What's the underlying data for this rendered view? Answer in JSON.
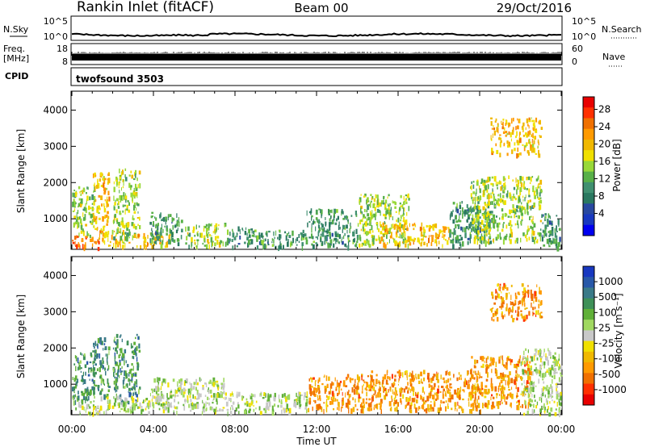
{
  "header": {
    "station": "Rankin Inlet (fitACF)",
    "beam": "Beam 00",
    "date": "29/Oct/2016"
  },
  "strips": {
    "nsky_label": "N.Sky",
    "nsky_ticks": [
      "10^5",
      "10^0"
    ],
    "nsearch_label": "N.Search",
    "nsearch_ticks": [
      "10^5",
      "10^0"
    ],
    "freq_label_1": "Freq.",
    "freq_label_2": "[MHz]",
    "freq_ticks": [
      "18",
      "8"
    ],
    "nave_label": "Nave",
    "nave_ticks": [
      "60",
      "0"
    ],
    "cpid_label": "CPID",
    "cpid_value": "twofsound 3503"
  },
  "xaxis": {
    "label": "Time UT",
    "ticks": [
      "00:00",
      "04:00",
      "08:00",
      "12:00",
      "16:00",
      "20:00",
      "00:00"
    ]
  },
  "panels": [
    {
      "ylabel": "Slant Range [km]",
      "yticks": [
        "4000",
        "3000",
        "2000",
        "1000"
      ],
      "cbar_label": "Power [dB]",
      "cbar_ticks": [
        "28",
        "24",
        "20",
        "16",
        "12",
        "8",
        "4"
      ],
      "cbar_colors": [
        "#e80000",
        "#ff3000",
        "#f07000",
        "#ff9a00",
        "#f0b800",
        "#f0e000",
        "#98d838",
        "#58b048",
        "#409070",
        "#2a7860",
        "#2848a0",
        "#1838c0",
        "#0000f0"
      ]
    },
    {
      "ylabel": "Slant Range [km]",
      "yticks": [
        "4000",
        "3000",
        "2000",
        "1000"
      ],
      "cbar_label": "Velocity [m s⁻¹]",
      "cbar_ticks": [
        "1000",
        "500",
        "100",
        "25",
        "-25",
        "-100",
        "-500",
        "-1000"
      ],
      "cbar_colors": [
        "#1838c0",
        "#2858a8",
        "#3a7a88",
        "#3e9058",
        "#60b038",
        "#a0d860",
        "#c8c8c8",
        "#f0e000",
        "#f0b800",
        "#ff9a00",
        "#f07000",
        "#ff3000",
        "#e80000"
      ]
    }
  ],
  "chart_data": [
    {
      "type": "heatmap",
      "title": "Rankin Inlet (fitACF)",
      "subtitle": "Beam 00",
      "xlabel": "Time UT",
      "ylabel": "Slant Range [km]",
      "x_ticks": [
        "00:00",
        "04:00",
        "08:00",
        "12:00",
        "16:00",
        "20:00",
        "00:00"
      ],
      "xlim_hours": [
        0,
        24
      ],
      "ylim": [
        180,
        4500
      ],
      "colorbar": {
        "label": "Power [dB]",
        "ticks": [
          4,
          8,
          12,
          16,
          20,
          24,
          28
        ]
      },
      "echo_regions": [
        {
          "t0": 0.0,
          "t1": 1.3,
          "r0": 200,
          "r1": 550,
          "value": 24
        },
        {
          "t0": 0.0,
          "t1": 1.1,
          "r0": 550,
          "r1": 1900,
          "value": 16
        },
        {
          "t0": 1.0,
          "t1": 1.8,
          "r0": 700,
          "r1": 2300,
          "value": 20
        },
        {
          "t0": 1.3,
          "t1": 2.8,
          "r0": 250,
          "r1": 700,
          "value": 20
        },
        {
          "t0": 2.0,
          "t1": 3.3,
          "r0": 500,
          "r1": 2400,
          "value": 16
        },
        {
          "t0": 3.0,
          "t1": 4.8,
          "r0": 250,
          "r1": 650,
          "value": 20
        },
        {
          "t0": 3.8,
          "t1": 5.4,
          "r0": 300,
          "r1": 1200,
          "value": 12
        },
        {
          "t0": 5.5,
          "t1": 7.5,
          "r0": 250,
          "r1": 900,
          "value": 16
        },
        {
          "t0": 7.5,
          "t1": 9.5,
          "r0": 250,
          "r1": 800,
          "value": 12
        },
        {
          "t0": 9.5,
          "t1": 11.5,
          "r0": 250,
          "r1": 700,
          "value": 12
        },
        {
          "t0": 11.5,
          "t1": 14.0,
          "r0": 250,
          "r1": 1300,
          "value": 12
        },
        {
          "t0": 14.0,
          "t1": 16.5,
          "r0": 300,
          "r1": 1700,
          "value": 16
        },
        {
          "t0": 15.0,
          "t1": 18.5,
          "r0": 300,
          "r1": 900,
          "value": 20
        },
        {
          "t0": 18.5,
          "t1": 20.5,
          "r0": 300,
          "r1": 1500,
          "value": 12
        },
        {
          "t0": 19.5,
          "t1": 23.0,
          "r0": 400,
          "r1": 2200,
          "value": 16
        },
        {
          "t0": 20.5,
          "t1": 23.0,
          "r0": 2800,
          "r1": 3800,
          "value": 20
        },
        {
          "t0": 23.0,
          "t1": 24.0,
          "r0": 200,
          "r1": 1200,
          "value": 12
        }
      ]
    },
    {
      "type": "heatmap",
      "title": "Rankin Inlet (fitACF)",
      "xlabel": "Time UT",
      "ylabel": "Slant Range [km]",
      "x_ticks": [
        "00:00",
        "04:00",
        "08:00",
        "12:00",
        "16:00",
        "20:00",
        "00:00"
      ],
      "xlim_hours": [
        0,
        24
      ],
      "ylim": [
        180,
        4500
      ],
      "colorbar": {
        "label": "Velocity [m s⁻¹]",
        "ticks": [
          1000,
          500,
          100,
          25,
          -25,
          -100,
          -500,
          -1000
        ]
      },
      "echo_regions": [
        {
          "t0": 0.0,
          "t1": 1.3,
          "r0": 200,
          "r1": 550,
          "value": 100
        },
        {
          "t0": 0.0,
          "t1": 1.1,
          "r0": 550,
          "r1": 1900,
          "value": 500
        },
        {
          "t0": 1.0,
          "t1": 1.8,
          "r0": 700,
          "r1": 2300,
          "value": 500
        },
        {
          "t0": 2.0,
          "t1": 3.3,
          "r0": 500,
          "r1": 2400,
          "value": 500
        },
        {
          "t0": 1.3,
          "t1": 4.8,
          "r0": 250,
          "r1": 700,
          "value": 100
        },
        {
          "t0": 3.8,
          "t1": 7.5,
          "r0": 250,
          "r1": 1200,
          "value": 100
        },
        {
          "t0": 7.5,
          "t1": 11.5,
          "r0": 250,
          "r1": 800,
          "value": 100
        },
        {
          "t0": 11.5,
          "t1": 14.5,
          "r0": 300,
          "r1": 1300,
          "value": -500
        },
        {
          "t0": 14.5,
          "t1": 20.0,
          "r0": 300,
          "r1": 1400,
          "value": -500
        },
        {
          "t0": 19.5,
          "t1": 22.5,
          "r0": 400,
          "r1": 1800,
          "value": -500
        },
        {
          "t0": 20.5,
          "t1": 23.0,
          "r0": 2800,
          "r1": 3800,
          "value": -500
        },
        {
          "t0": 22.0,
          "t1": 24.0,
          "r0": 200,
          "r1": 2000,
          "value": 100
        }
      ]
    }
  ]
}
